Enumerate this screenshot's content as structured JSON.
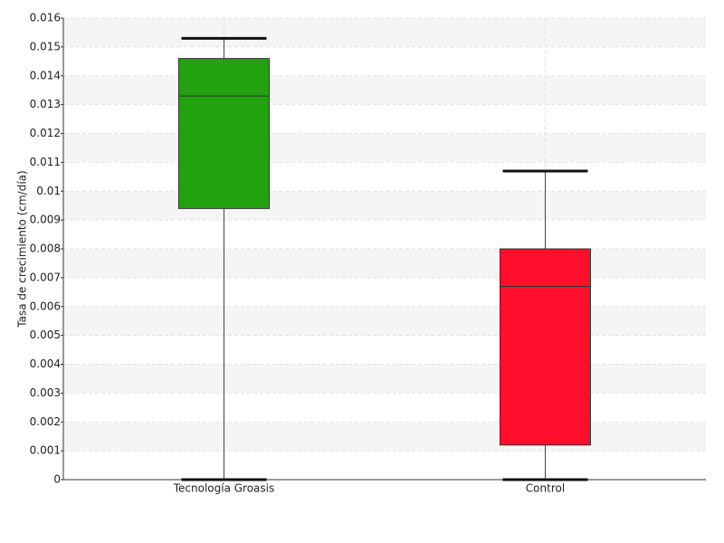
{
  "chart_data": {
    "type": "box",
    "y_label": "Tasa de crecimiento (cm/día)",
    "categories": [
      "Tecnología Groasis",
      "Control"
    ],
    "colors": [
      "#22a20f",
      "#ff0f2b"
    ],
    "values": [
      {
        "min": 0,
        "q1": 0.0094,
        "median": 0.0133,
        "q3": 0.0146,
        "max": 0.0153
      },
      {
        "min": 0,
        "q1": 0.0012,
        "median": 0.0067,
        "q3": 0.008,
        "max": 0.0107
      }
    ],
    "ylim": [
      0,
      0.016
    ],
    "yticks": [
      0,
      0.001,
      0.002,
      0.003,
      0.004,
      0.005,
      0.006,
      0.007,
      0.008,
      0.009,
      0.01,
      0.011,
      0.012,
      0.013,
      0.014,
      0.015,
      0.016
    ],
    "grid": true
  }
}
